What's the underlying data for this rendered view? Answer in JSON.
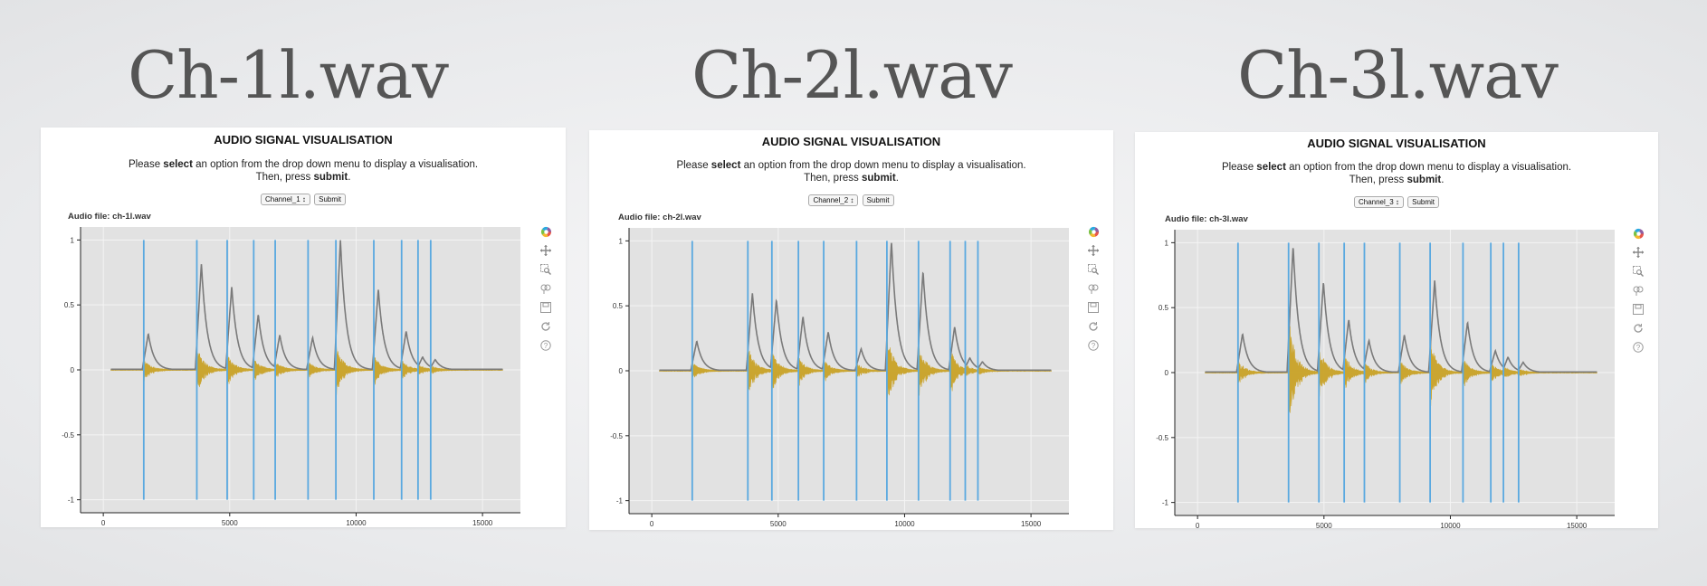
{
  "panels": [
    {
      "file_title": "Ch-1l.wav",
      "viz_title": "AUDIO SIGNAL VISUALISATION",
      "instruction_pre": "Please ",
      "instruction_select": "select",
      "instruction_mid": " an option from the drop down menu to display a visualisation.",
      "instruction_then": "Then, press ",
      "instruction_submit": "submit",
      "instruction_end": ".",
      "dropdown_value": "Channel_1 ↕",
      "submit_label": "Submit",
      "audio_file_label": "Audio file: ch-1l.wav",
      "chart_data": {
        "type": "line",
        "x_ticks": [
          "0",
          "5000",
          "10000",
          "15000"
        ],
        "y_ticks": [
          "1",
          "0.5",
          "0",
          "-0.5",
          "-1"
        ],
        "xlim": [
          -900,
          16500
        ],
        "ylim": [
          -1.1,
          1.1
        ],
        "onsets": [
          1600,
          3700,
          4900,
          5950,
          6800,
          8100,
          9200,
          10700,
          11800,
          12450,
          12950
        ],
        "peaks": [
          0.28,
          0.82,
          0.64,
          0.43,
          0.27,
          0.25,
          1.0,
          0.62,
          0.3,
          0.1,
          0.08
        ],
        "wave_amps": [
          0.08,
          0.2,
          0.13,
          0.1,
          0.07,
          0.07,
          0.21,
          0.12,
          0.08,
          0.04,
          0.03
        ],
        "envelope_color": "#7a7a7a",
        "waveform_color": "#c9a227",
        "onset_color": "#5aa9e0",
        "background": "#e2e2e2"
      }
    },
    {
      "file_title": "Ch-2l.wav",
      "viz_title": "AUDIO SIGNAL VISUALISATION",
      "instruction_pre": "Please ",
      "instruction_select": "select",
      "instruction_mid": " an option from the drop down menu to display a visualisation.",
      "instruction_then": "Then, press ",
      "instruction_submit": "submit",
      "instruction_end": ".",
      "dropdown_value": "Channel_2 ↕",
      "submit_label": "Submit",
      "audio_file_label": "Audio file: ch-2l.wav",
      "chart_data": {
        "type": "line",
        "x_ticks": [
          "0",
          "5000",
          "10000",
          "15000"
        ],
        "y_ticks": [
          "1",
          "0.5",
          "0",
          "-0.5",
          "-1"
        ],
        "xlim": [
          -900,
          16500
        ],
        "ylim": [
          -1.1,
          1.1
        ],
        "onsets": [
          1600,
          3800,
          4750,
          5800,
          6800,
          8100,
          9300,
          10550,
          11800,
          12400,
          12900
        ],
        "peaks": [
          0.23,
          0.6,
          0.55,
          0.42,
          0.3,
          0.17,
          1.0,
          0.77,
          0.34,
          0.1,
          0.07
        ],
        "wave_amps": [
          0.07,
          0.22,
          0.16,
          0.11,
          0.09,
          0.06,
          0.3,
          0.22,
          0.18,
          0.05,
          0.03
        ],
        "envelope_color": "#7a7a7a",
        "waveform_color": "#c9a227",
        "onset_color": "#5aa9e0",
        "background": "#e2e2e2"
      }
    },
    {
      "file_title": "Ch-3l.wav",
      "viz_title": "AUDIO SIGNAL VISUALISATION",
      "instruction_pre": "Please ",
      "instruction_select": "select",
      "instruction_mid": " an option from the drop down menu to display a visualisation.",
      "instruction_then": "Then, press ",
      "instruction_submit": "submit",
      "instruction_end": ".",
      "dropdown_value": "Channel_3 ↕",
      "submit_label": "Submit",
      "audio_file_label": "Audio file: ch-3l.wav",
      "chart_data": {
        "type": "line",
        "x_ticks": [
          "0",
          "5000",
          "10000",
          "15000"
        ],
        "y_ticks": [
          "1",
          "0.5",
          "0",
          "-0.5",
          "-1"
        ],
        "xlim": [
          -900,
          16500
        ],
        "ylim": [
          -1.1,
          1.1
        ],
        "onsets": [
          1600,
          3600,
          4800,
          5800,
          6600,
          8000,
          9200,
          10500,
          11600,
          12100,
          12700
        ],
        "peaks": [
          0.3,
          0.98,
          0.7,
          0.41,
          0.25,
          0.29,
          0.71,
          0.39,
          0.17,
          0.12,
          0.08
        ],
        "wave_amps": [
          0.1,
          0.48,
          0.22,
          0.16,
          0.08,
          0.1,
          0.28,
          0.12,
          0.08,
          0.05,
          0.03
        ],
        "envelope_color": "#7a7a7a",
        "waveform_color": "#c9a227",
        "onset_color": "#5aa9e0",
        "background": "#e2e2e2"
      }
    }
  ],
  "toolbar": {
    "icons": [
      "bokeh-logo-icon",
      "pan-icon",
      "box-zoom-icon",
      "wheel-zoom-icon",
      "save-icon",
      "reset-icon",
      "help-icon"
    ],
    "logo_colors": [
      "#e8564b",
      "#f5b82e",
      "#7ac143",
      "#2aa9e0",
      "#8e5ea2"
    ]
  }
}
